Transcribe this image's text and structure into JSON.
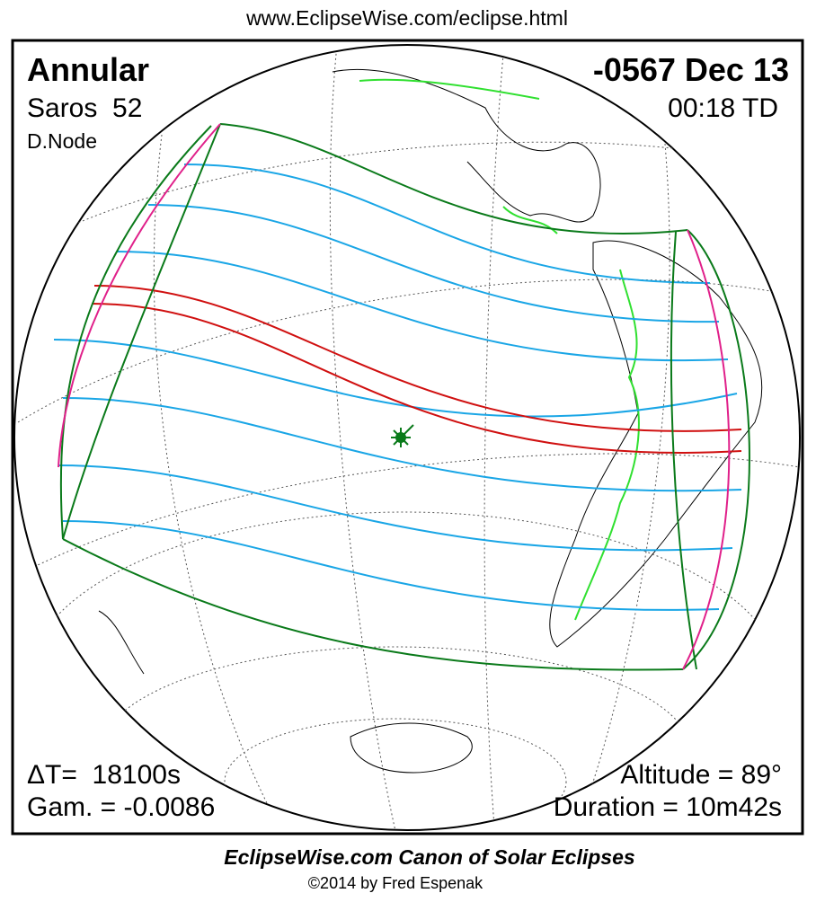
{
  "header": {
    "url": "www.EclipseWise.com/eclipse.html",
    "type": "Annular",
    "date": "-0567 Dec 13",
    "saros": "Saros  52",
    "time": "00:18 TD",
    "node": "D.Node"
  },
  "stats": {
    "delta_t": "ΔT=  18100s",
    "gamma": "Gam. = -0.0086",
    "altitude": "Altitude = 89°",
    "duration": "Duration = 10m42s"
  },
  "footer": {
    "title": "EclipseWise.com Canon of Solar Eclipses",
    "copyright": "©2014 by Fred Espenak"
  }
}
